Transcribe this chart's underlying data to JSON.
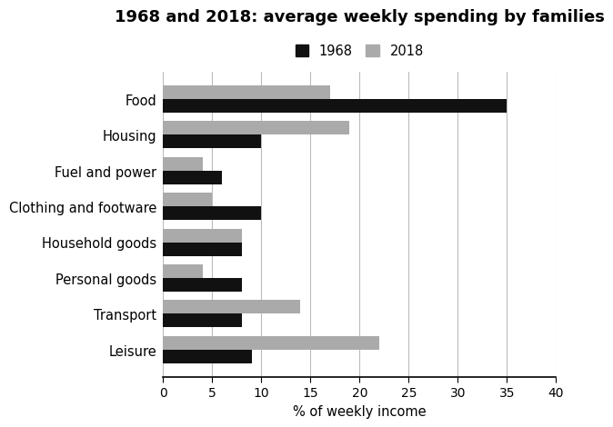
{
  "title": "1968 and 2018: average weekly spending by families",
  "xlabel": "% of weekly income",
  "categories": [
    "Food",
    "Housing",
    "Fuel and power",
    "Clothing and footware",
    "Household goods",
    "Personal goods",
    "Transport",
    "Leisure"
  ],
  "values_1968": [
    35,
    10,
    6,
    10,
    8,
    8,
    8,
    9
  ],
  "values_2018": [
    17,
    19,
    4,
    5,
    8,
    4,
    14,
    22
  ],
  "color_1968": "#111111",
  "color_2018": "#aaaaaa",
  "xlim": [
    0,
    40
  ],
  "xticks": [
    0,
    5,
    10,
    15,
    20,
    25,
    30,
    35,
    40
  ],
  "bar_height": 0.38,
  "legend_labels": [
    "1968",
    "2018"
  ],
  "background_color": "#ffffff",
  "grid_color": "#bbbbbb",
  "title_fontsize": 13,
  "label_fontsize": 10.5,
  "tick_fontsize": 10
}
